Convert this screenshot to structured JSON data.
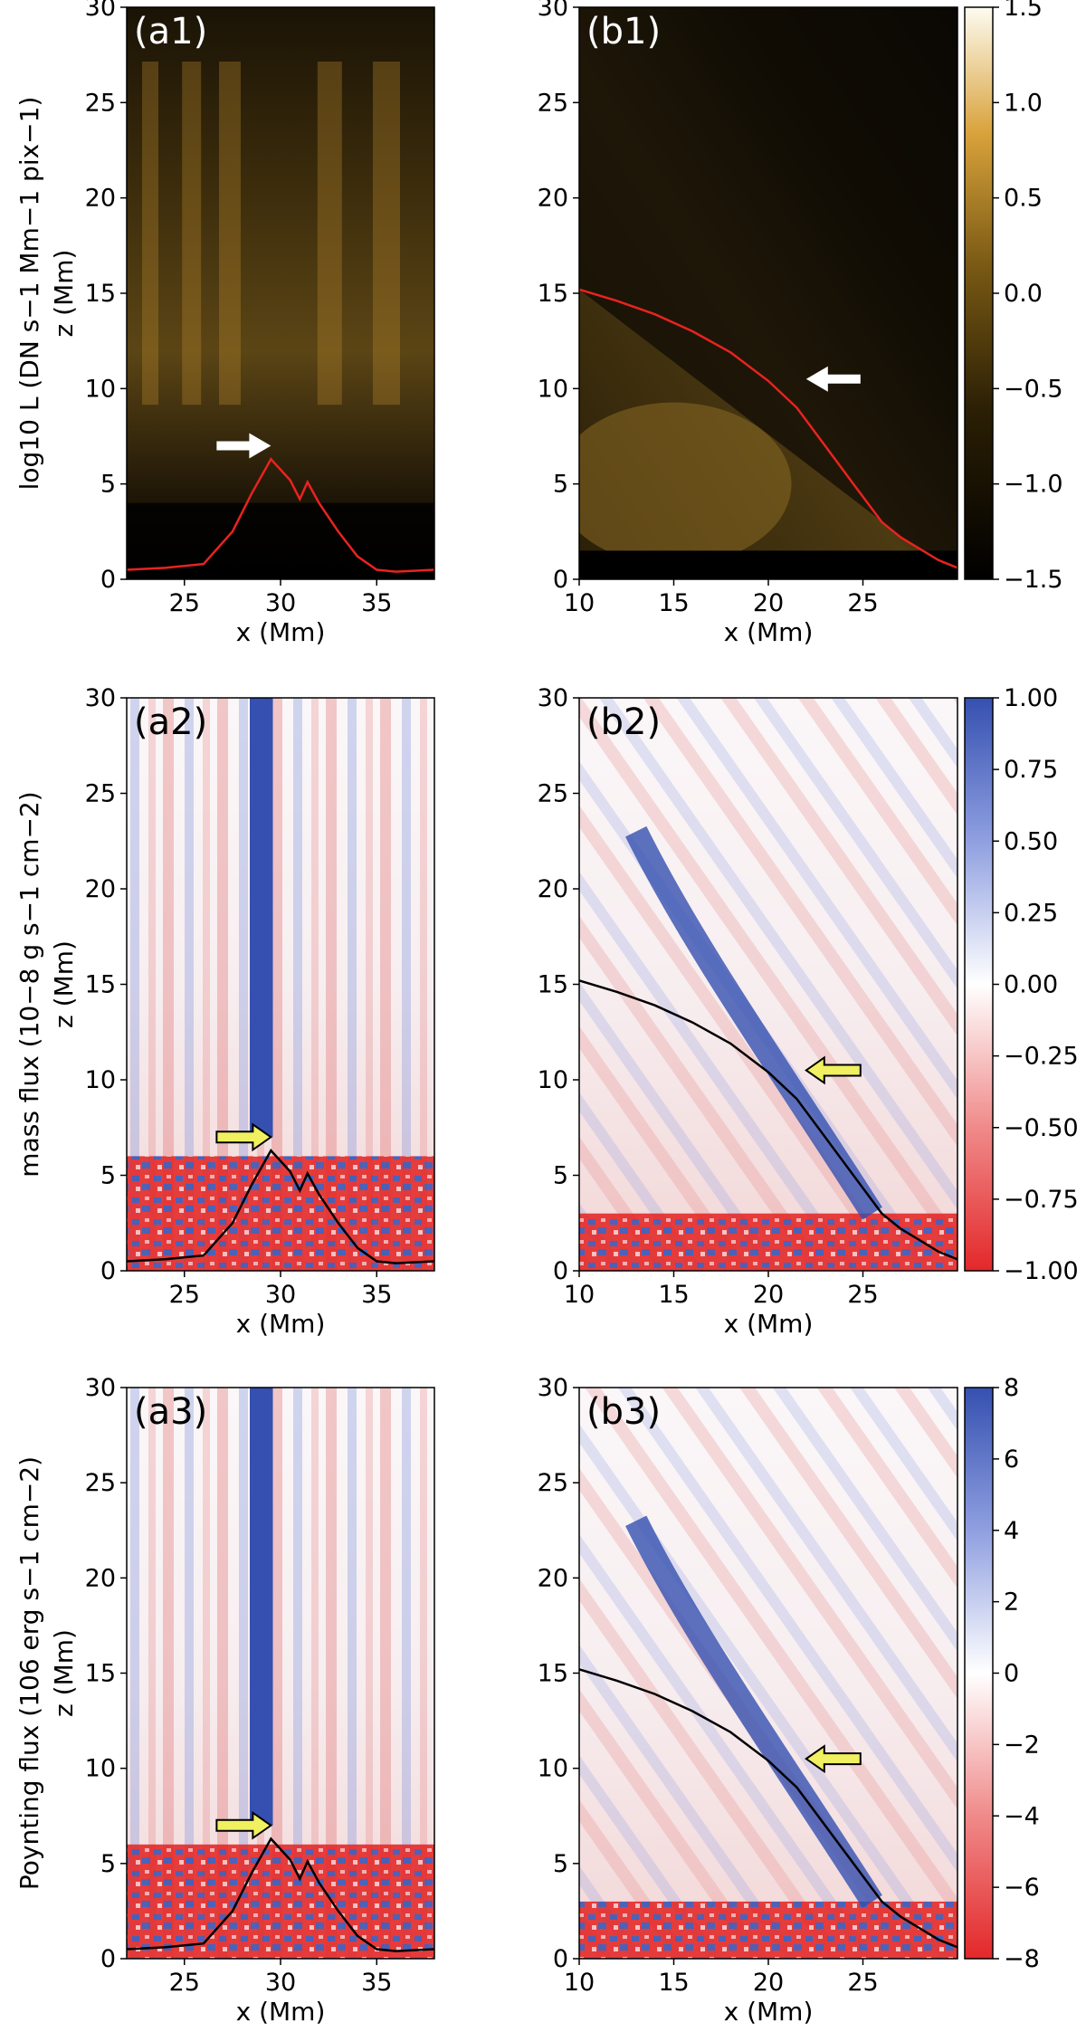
{
  "figure": {
    "rows": [
      {
        "id": "row1",
        "quantity_label": "log",
        "quantity_sub": "10",
        "quantity_rest": " L (DN s",
        "quantity_units_tail": "Mm",
        "quantity_units_tail2": "pix",
        "quantity_full": "log10 L (DN s−1 Mm−1 pix−1)",
        "colormap": "heat",
        "colorbar": {
          "min": -1.5,
          "max": 1.5,
          "ticks": [
            "1.5",
            "1.0",
            "0.5",
            "0.0",
            "−0.5",
            "−1.0",
            "−1.5"
          ]
        },
        "contour_color": "#e8231f",
        "arrow_color": "#ffffff"
      },
      {
        "id": "row2",
        "quantity_full": "mass flux (10−8 g s−1 cm−2)",
        "colormap": "diverging",
        "colorbar": {
          "min": -1.0,
          "max": 1.0,
          "ticks": [
            "1.00",
            "0.75",
            "0.50",
            "0.25",
            "0.00",
            "−0.25",
            "−0.50",
            "−0.75",
            "−1.00"
          ]
        },
        "contour_color": "#000000",
        "arrow_color": "#f0f060"
      },
      {
        "id": "row3",
        "quantity_full": "Poynting flux (106 erg s−1 cm−2)",
        "colormap": "diverging",
        "colorbar": {
          "min": -8,
          "max": 8,
          "ticks": [
            "8",
            "6",
            "4",
            "2",
            "0",
            "−2",
            "−4",
            "−6",
            "−8"
          ]
        },
        "contour_color": "#000000",
        "arrow_color": "#f0f060"
      }
    ],
    "panels": [
      {
        "id": "a1",
        "label": "(a1)",
        "row": 0,
        "col": 0
      },
      {
        "id": "b1",
        "label": "(b1)",
        "row": 0,
        "col": 1
      },
      {
        "id": "a2",
        "label": "(a2)",
        "row": 1,
        "col": 0
      },
      {
        "id": "b2",
        "label": "(b2)",
        "row": 1,
        "col": 1
      },
      {
        "id": "a3",
        "label": "(a3)",
        "row": 2,
        "col": 0
      },
      {
        "id": "b3",
        "label": "(b3)",
        "row": 2,
        "col": 1
      }
    ],
    "columns": [
      {
        "xlim": [
          22,
          38
        ],
        "xticks": [
          "25",
          "30",
          "35"
        ],
        "xtick_values": [
          25,
          30,
          35
        ]
      },
      {
        "xlim": [
          10,
          30
        ],
        "xticks": [
          "10",
          "15",
          "20",
          "25"
        ],
        "xtick_values": [
          10,
          15,
          20,
          25
        ]
      }
    ],
    "xlabel": "x (Mm)",
    "ylabel": "z (Mm)",
    "ylim": [
      0,
      30
    ],
    "yticks": [
      "0",
      "5",
      "10",
      "15",
      "20",
      "25",
      "30"
    ]
  },
  "chart_data": {
    "type": "heatmap",
    "title": "",
    "xlabel": "x (Mm)",
    "ylabel": "z (Mm)",
    "ylim": [
      0,
      30
    ],
    "panels": [
      {
        "id": "a1",
        "quantity": "log10 L",
        "xlim": [
          22,
          38
        ],
        "color_range": [
          -1.5,
          1.5
        ],
        "arrow_at": [
          29.5,
          7
        ]
      },
      {
        "id": "b1",
        "quantity": "log10 L",
        "xlim": [
          10,
          30
        ],
        "color_range": [
          -1.5,
          1.5
        ],
        "arrow_at": [
          22,
          10.5
        ]
      },
      {
        "id": "a2",
        "quantity": "mass flux",
        "xlim": [
          22,
          38
        ],
        "color_range": [
          -1.0,
          1.0
        ],
        "arrow_at": [
          29.5,
          7
        ]
      },
      {
        "id": "b2",
        "quantity": "mass flux",
        "xlim": [
          10,
          30
        ],
        "color_range": [
          -1.0,
          1.0
        ],
        "arrow_at": [
          22,
          10.5
        ]
      },
      {
        "id": "a3",
        "quantity": "Poynting flux",
        "xlim": [
          22,
          38
        ],
        "color_range": [
          -8,
          8
        ],
        "arrow_at": [
          29.5,
          7
        ]
      },
      {
        "id": "b3",
        "quantity": "Poynting flux",
        "xlim": [
          10,
          30
        ],
        "color_range": [
          -8,
          8
        ],
        "arrow_at": [
          22,
          10.5
        ]
      }
    ],
    "contours": {
      "a": {
        "x": [
          22,
          24,
          26,
          27.5,
          28.5,
          29.5,
          30.5,
          31,
          31.4,
          32,
          33,
          34,
          35,
          36,
          38
        ],
        "z": [
          0.5,
          0.6,
          0.8,
          2.5,
          4.5,
          6.3,
          5.2,
          4.2,
          5.1,
          4.0,
          2.5,
          1.2,
          0.5,
          0.4,
          0.5
        ]
      },
      "b": {
        "x": [
          10,
          12,
          14,
          16,
          18,
          20,
          21.5,
          23,
          24.5,
          26,
          27,
          28,
          29,
          30
        ],
        "z": [
          15.2,
          14.6,
          13.9,
          13.0,
          11.9,
          10.4,
          9.0,
          7.0,
          5.0,
          3.0,
          2.2,
          1.6,
          1.0,
          0.6
        ]
      }
    }
  }
}
